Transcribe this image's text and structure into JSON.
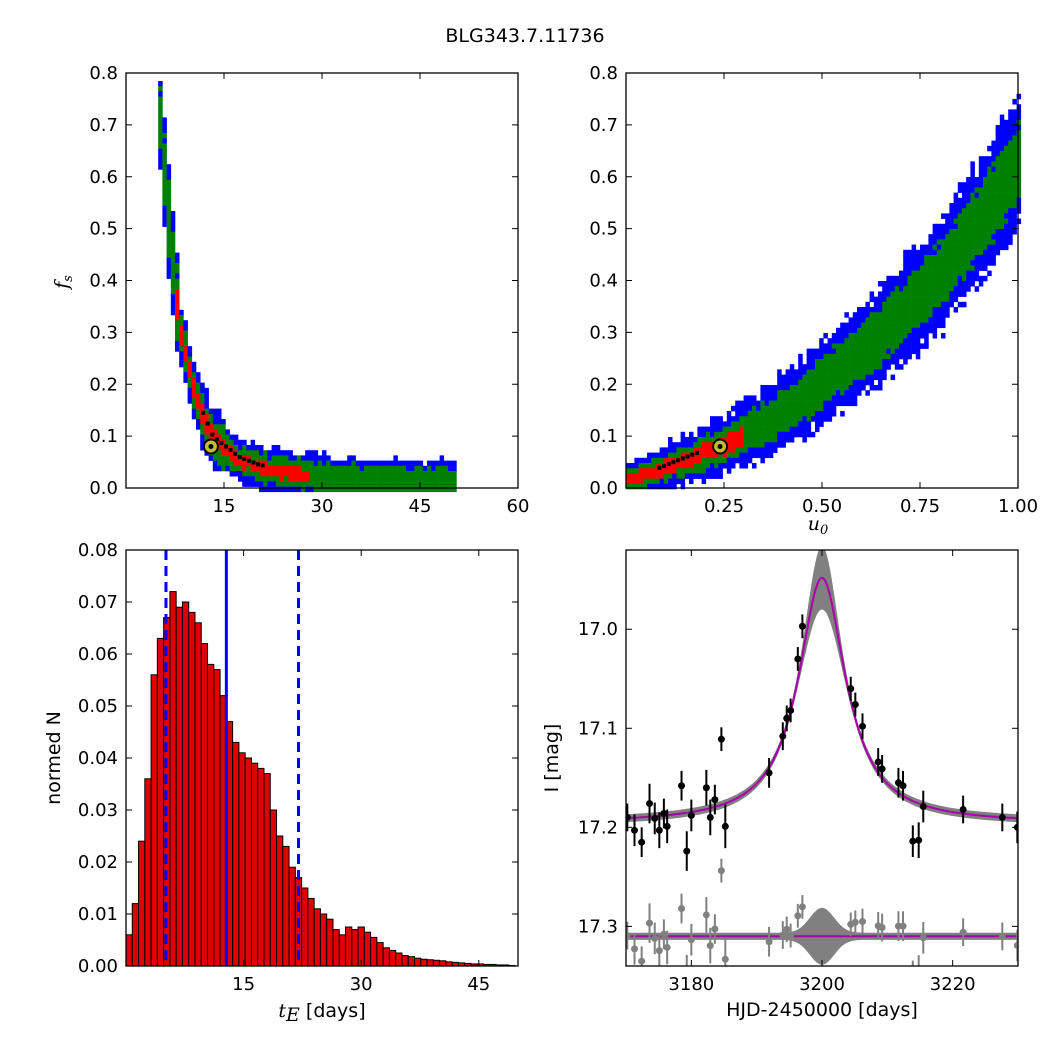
{
  "figure": {
    "title": "BLG343.7.11736"
  },
  "colors": {
    "blue": "#0000ff",
    "green": "#008000",
    "red": "#ff0000",
    "black": "#000000",
    "gray": "#808080",
    "magenta": "#aa00aa",
    "olive": "#bfbf2f",
    "bar_fill": "#e00000"
  },
  "chart_data": [
    {
      "id": "fs-vs-tE",
      "type": "heatmap",
      "ylabel_main": "f",
      "ylabel_sub": "s",
      "xlim": [
        0,
        60
      ],
      "ylim": [
        0,
        0.8
      ],
      "xticks": [
        "15",
        "30",
        "45",
        "60"
      ],
      "xtick_values": [
        15,
        30,
        45,
        60
      ],
      "yticks": [
        "0.0",
        "0.1",
        "0.2",
        "0.3",
        "0.4",
        "0.5",
        "0.6",
        "0.7",
        "0.8"
      ],
      "ytick_values": [
        0,
        0.1,
        0.2,
        0.3,
        0.4,
        0.5,
        0.6,
        0.7,
        0.8
      ],
      "best_fit": {
        "x": 13,
        "y": 0.08
      },
      "ridge": [
        [
          4.5,
          0.78
        ],
        [
          5,
          0.7
        ],
        [
          5.5,
          0.62
        ],
        [
          6,
          0.55
        ],
        [
          6.5,
          0.48
        ],
        [
          7,
          0.42
        ],
        [
          7.5,
          0.36
        ],
        [
          8,
          0.31
        ],
        [
          9,
          0.25
        ],
        [
          10,
          0.2
        ],
        [
          11,
          0.16
        ],
        [
          12,
          0.13
        ],
        [
          13,
          0.1
        ],
        [
          15,
          0.08
        ],
        [
          17,
          0.06
        ],
        [
          20,
          0.045
        ],
        [
          24,
          0.035
        ],
        [
          30,
          0.025
        ],
        [
          38,
          0.02
        ],
        [
          45,
          0.018
        ],
        [
          50,
          0.017
        ]
      ]
    },
    {
      "id": "fs-vs-u0",
      "type": "heatmap",
      "xlabel_main": "u",
      "xlabel_sub": "0",
      "xlim": [
        0,
        1
      ],
      "ylim": [
        0,
        0.8
      ],
      "xticks": [
        "0.25",
        "0.50",
        "0.75",
        "1.00"
      ],
      "xtick_values": [
        0.25,
        0.5,
        0.75,
        1.0
      ],
      "yticks": [
        "0.0",
        "0.1",
        "0.2",
        "0.3",
        "0.4",
        "0.5",
        "0.6",
        "0.7",
        "0.8"
      ],
      "ytick_values": [
        0,
        0.1,
        0.2,
        0.3,
        0.4,
        0.5,
        0.6,
        0.7,
        0.8
      ],
      "best_fit": {
        "x": 0.24,
        "y": 0.08
      },
      "ridge": [
        [
          0.0,
          0.02
        ],
        [
          0.05,
          0.03
        ],
        [
          0.1,
          0.045
        ],
        [
          0.15,
          0.06
        ],
        [
          0.2,
          0.075
        ],
        [
          0.25,
          0.09
        ],
        [
          0.3,
          0.11
        ],
        [
          0.35,
          0.13
        ],
        [
          0.4,
          0.155
        ],
        [
          0.45,
          0.18
        ],
        [
          0.5,
          0.21
        ],
        [
          0.55,
          0.24
        ],
        [
          0.6,
          0.27
        ],
        [
          0.65,
          0.305
        ],
        [
          0.7,
          0.34
        ],
        [
          0.75,
          0.38
        ],
        [
          0.8,
          0.42
        ],
        [
          0.85,
          0.47
        ],
        [
          0.9,
          0.52
        ],
        [
          0.95,
          0.58
        ],
        [
          1.0,
          0.64
        ]
      ]
    },
    {
      "id": "tE-histogram",
      "type": "bar",
      "xlabel_main": "t",
      "xlabel_sub": "E",
      "xlabel_rest": " [days]",
      "ylabel": "normed N",
      "xlim": [
        0,
        50
      ],
      "ylim": [
        0,
        0.08
      ],
      "xticks": [
        "15",
        "30",
        "45"
      ],
      "xtick_values": [
        15,
        30,
        45
      ],
      "yticks": [
        "0.00",
        "0.01",
        "0.02",
        "0.03",
        "0.04",
        "0.05",
        "0.06",
        "0.07",
        "0.08"
      ],
      "ytick_values": [
        0,
        0.01,
        0.02,
        0.03,
        0.04,
        0.05,
        0.06,
        0.07,
        0.08
      ],
      "bin_start": 0,
      "bin_width": 0.8,
      "values": [
        0.006,
        0.012,
        0.024,
        0.036,
        0.056,
        0.063,
        0.067,
        0.072,
        0.069,
        0.07,
        0.068,
        0.066,
        0.062,
        0.058,
        0.057,
        0.052,
        0.047,
        0.043,
        0.041,
        0.04,
        0.039,
        0.038,
        0.037,
        0.03,
        0.025,
        0.023,
        0.019,
        0.017,
        0.015,
        0.013,
        0.011,
        0.01,
        0.009,
        0.007,
        0.006,
        0.0075,
        0.007,
        0.0075,
        0.0065,
        0.0055,
        0.0045,
        0.0035,
        0.003,
        0.0025,
        0.002,
        0.0018,
        0.0015,
        0.0013,
        0.0012,
        0.0011,
        0.001,
        0.0008,
        0.0007,
        0.0006,
        0.0005,
        0.0004,
        0.0004,
        0.0003,
        0.0003,
        0.0002,
        0.0002,
        0.0001
      ],
      "median": 12.8,
      "lower": 5.1,
      "upper": 22.0
    },
    {
      "id": "light-curve",
      "type": "scatter",
      "xlabel": "HJD-2450000 [days]",
      "ylabel": "I [mag]",
      "xlim": [
        3170,
        3230
      ],
      "ylim": [
        17.34,
        16.92
      ],
      "xticks": [
        "3180",
        "3200",
        "3220"
      ],
      "xtick_values": [
        3180,
        3200,
        3220
      ],
      "yticks": [
        "17.0",
        "17.1",
        "17.2",
        "17.3"
      ],
      "ytick_values": [
        17.0,
        17.1,
        17.2,
        17.3
      ],
      "model": {
        "t0": 3200,
        "base": 17.196,
        "peak": 16.948,
        "width": 4.4
      },
      "residual_offset": 17.31,
      "points": [
        {
          "x": 3170.2,
          "y": 17.19,
          "e": 0.014
        },
        {
          "x": 3171.3,
          "y": 17.203,
          "e": 0.016
        },
        {
          "x": 3172.4,
          "y": 17.215,
          "e": 0.015
        },
        {
          "x": 3173.6,
          "y": 17.176,
          "e": 0.02
        },
        {
          "x": 3174.4,
          "y": 17.191,
          "e": 0.016
        },
        {
          "x": 3175.1,
          "y": 17.203,
          "e": 0.018
        },
        {
          "x": 3175.8,
          "y": 17.186,
          "e": 0.015
        },
        {
          "x": 3176.3,
          "y": 17.199,
          "e": 0.017
        },
        {
          "x": 3178.5,
          "y": 17.158,
          "e": 0.015
        },
        {
          "x": 3179.3,
          "y": 17.224,
          "e": 0.02
        },
        {
          "x": 3180.0,
          "y": 17.188,
          "e": 0.016
        },
        {
          "x": 3182.3,
          "y": 17.16,
          "e": 0.018
        },
        {
          "x": 3182.9,
          "y": 17.19,
          "e": 0.018
        },
        {
          "x": 3183.6,
          "y": 17.172,
          "e": 0.015
        },
        {
          "x": 3184.6,
          "y": 17.111,
          "e": 0.012
        },
        {
          "x": 3185.2,
          "y": 17.199,
          "e": 0.022
        },
        {
          "x": 3191.9,
          "y": 17.145,
          "e": 0.015
        },
        {
          "x": 3194.0,
          "y": 17.108,
          "e": 0.014
        },
        {
          "x": 3194.6,
          "y": 17.09,
          "e": 0.013
        },
        {
          "x": 3195.2,
          "y": 17.082,
          "e": 0.012
        },
        {
          "x": 3196.3,
          "y": 17.03,
          "e": 0.012
        },
        {
          "x": 3197.0,
          "y": 16.997,
          "e": 0.012
        },
        {
          "x": 3204.4,
          "y": 17.06,
          "e": 0.012
        },
        {
          "x": 3205.1,
          "y": 17.076,
          "e": 0.012
        },
        {
          "x": 3206.2,
          "y": 17.098,
          "e": 0.013
        },
        {
          "x": 3208.6,
          "y": 17.134,
          "e": 0.014
        },
        {
          "x": 3209.2,
          "y": 17.141,
          "e": 0.014
        },
        {
          "x": 3211.7,
          "y": 17.155,
          "e": 0.015
        },
        {
          "x": 3212.4,
          "y": 17.158,
          "e": 0.015
        },
        {
          "x": 3213.9,
          "y": 17.214,
          "e": 0.016
        },
        {
          "x": 3214.8,
          "y": 17.213,
          "e": 0.018
        },
        {
          "x": 3215.5,
          "y": 17.179,
          "e": 0.016
        },
        {
          "x": 3221.6,
          "y": 17.182,
          "e": 0.014
        },
        {
          "x": 3227.6,
          "y": 17.19,
          "e": 0.014
        },
        {
          "x": 3229.9,
          "y": 17.2,
          "e": 0.016
        }
      ]
    }
  ]
}
